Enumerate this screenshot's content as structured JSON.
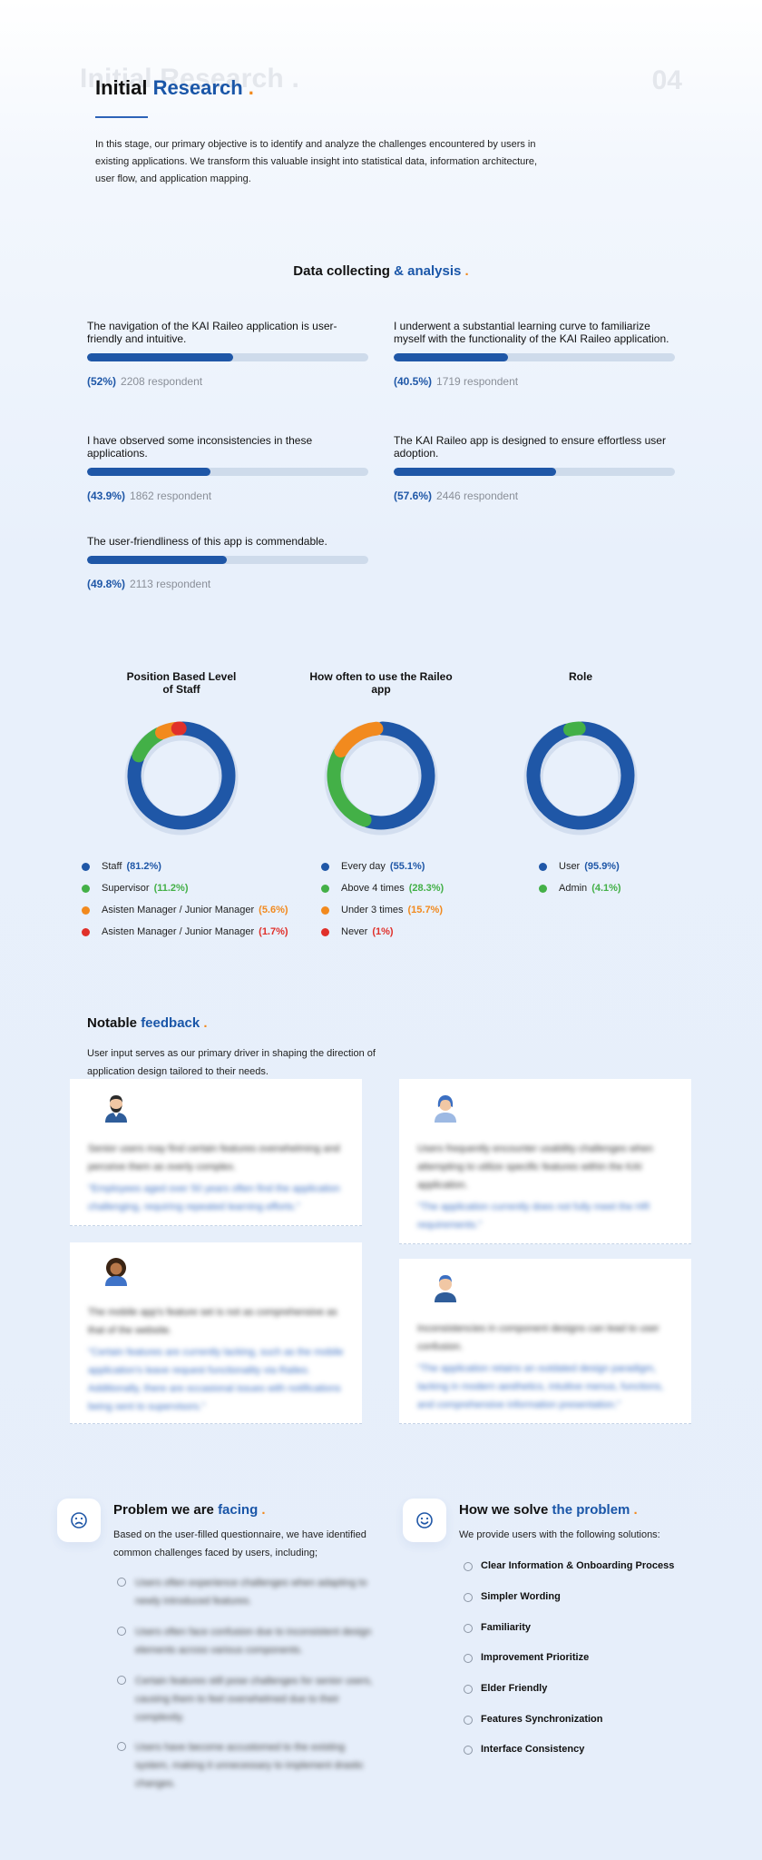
{
  "header": {
    "ghost_title": "Initial Research .",
    "page_number": "04",
    "title_part1": "Initial ",
    "title_part2": "Research",
    "title_dot": " .",
    "intro": "In this stage, our primary objective is to identify and analyze the challenges encountered by users in existing applications. We transform this valuable insight into statistical data, information architecture, user flow, and application mapping."
  },
  "data_section": {
    "title_part1": "Data collecting ",
    "title_part2": "& analysis",
    "title_dot": " ."
  },
  "survey": [
    {
      "question": "The navigation of the KAI Raileo application is user-friendly and intuitive.",
      "percent_label": "(52%)",
      "percent": 52,
      "respondents": "2208 respondent"
    },
    {
      "question": "I underwent a substantial learning curve to familiarize myself with the functionality of the KAI Raileo application.",
      "percent_label": "(40.5%)",
      "percent": 40.5,
      "respondents": "1719 respondent"
    },
    {
      "question": "I have observed some inconsistencies in these applications.",
      "percent_label": "(43.9%)",
      "percent": 43.9,
      "respondents": "1862 respondent"
    },
    {
      "question": "The KAI Raileo app is designed to ensure effortless user adoption.",
      "percent_label": "(57.6%)",
      "percent": 57.6,
      "respondents": "2446 respondent"
    },
    {
      "question": "The user-friendliness of this app is commendable.",
      "percent_label": "(49.8%)",
      "percent": 49.8,
      "respondents": "2113 respondent"
    }
  ],
  "chart_data": [
    {
      "type": "pie",
      "title": "Position Based Level of Staff",
      "categories": [
        "Staff",
        "Supervisor",
        "Asisten Manager / Junior Manager",
        "Asisten Manager / Junior Manager"
      ],
      "values": [
        81.2,
        11.2,
        5.6,
        1.7
      ],
      "value_labels": [
        "(81.2%)",
        "(11.2%)",
        "(5.6%)",
        "(1.7%)"
      ],
      "colors": [
        "#1f57a7",
        "#43b047",
        "#f28a1e",
        "#e0302a"
      ]
    },
    {
      "type": "pie",
      "title": "How often to use the Raileo app",
      "categories": [
        "Every day",
        "Above 4 times",
        "Under 3 times",
        "Never"
      ],
      "values": [
        55.1,
        28.3,
        15.7,
        1
      ],
      "value_labels": [
        "(55.1%)",
        "(28.3%)",
        "(15.7%)",
        "(1%)"
      ],
      "colors": [
        "#1f57a7",
        "#43b047",
        "#f28a1e",
        "#e0302a"
      ]
    },
    {
      "type": "pie",
      "title": "Role",
      "categories": [
        "User",
        "Admin"
      ],
      "values": [
        95.9,
        4.1
      ],
      "value_labels": [
        "(95.9%)",
        "(4.1%)"
      ],
      "colors": [
        "#1f57a7",
        "#43b047"
      ]
    }
  ],
  "feedback": {
    "title_part1": "Notable ",
    "title_part2": "feedback",
    "title_dot": " .",
    "intro": "User input serves as our primary driver in shaping the direction of application design tailored to their needs.",
    "cards": [
      {
        "avatar": "bearded-man-avatar-icon",
        "text": "Senior users may find certain features overwhelming and perceive them as overly complex.",
        "quote": "\"Employees aged over 50 years often find the application challenging, requiring repeated learning efforts.\""
      },
      {
        "avatar": "woman-avatar-icon",
        "text": "Users frequently encounter usability challenges when attempting to utilize specific features within the KAI application.",
        "quote": "\"The application currently does not fully meet the HR requirements.\""
      },
      {
        "avatar": "curly-woman-avatar-icon",
        "text": "The mobile app's feature set is not as comprehensive as that of the website.",
        "quote": "\"Certain features are currently lacking, such as the mobile application's leave request functionality via Raileo. Additionally, there are occasional issues with notifications being sent to supervisors.\""
      },
      {
        "avatar": "man-avatar-icon",
        "text": "Inconsistencies in component designs can lead to user confusion.",
        "quote": "\"The application retains an outdated design paradigm, lacking in modern aesthetics, intuitive menus, functions, and comprehensive information presentation.\""
      }
    ]
  },
  "problem": {
    "icon": "sad-face-icon",
    "title_part1": "Problem we are ",
    "title_part2": "facing",
    "title_dot": " .",
    "intro": "Based on the user-filled questionnaire, we have identified common challenges faced by users, including;",
    "items": [
      "Users often experience challenges when adapting to newly introduced features.",
      "Users often face confusion due to inconsistent design elements across various components.",
      "Certain features still pose challenges for senior users, causing them to feel overwhelmed due to their complexity.",
      "Users have become accustomed to the existing system, making it unnecessary to implement drastic changes."
    ]
  },
  "solution": {
    "icon": "smile-face-icon",
    "title_part1": "How we solve ",
    "title_part2": "the problem",
    "title_dot": " .",
    "intro": "We provide users with the following solutions:",
    "items": [
      "Clear Information & Onboarding Process",
      "Simpler Wording",
      "Familiarity",
      "Improvement Prioritize",
      "Elder Friendly",
      "Features Synchronization",
      "Interface Consistency"
    ]
  }
}
